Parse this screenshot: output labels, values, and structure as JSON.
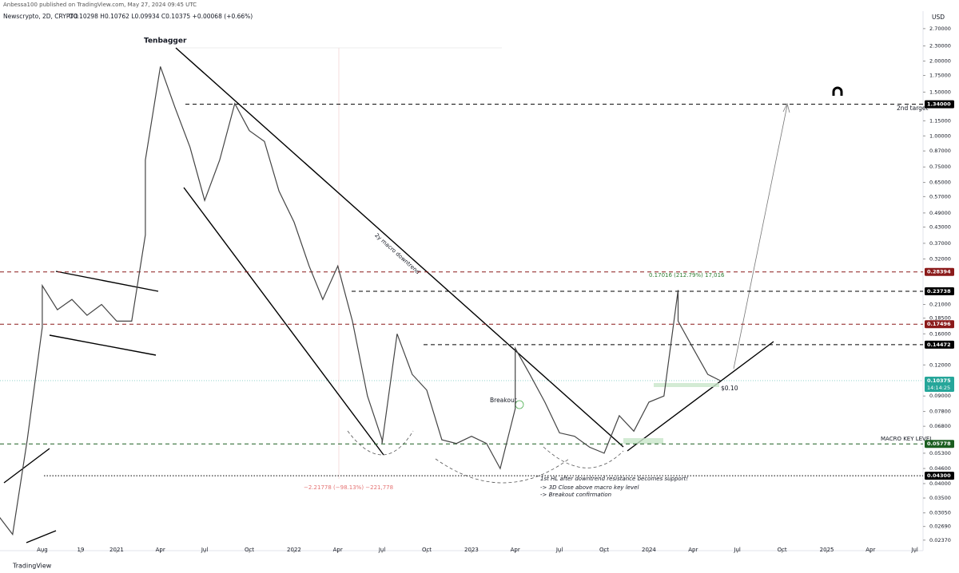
{
  "header": {
    "published": "Anbessa100 published on TradingView.com, May 27, 2024 09:45 UTC",
    "symbol": "Newscrypto, 2D, CRYPTO",
    "ohlc": "O0.10298 H0.10762 L0.09934 C0.10375 +0.00068 (+0.66%)"
  },
  "footer": {
    "brand": "TradingView"
  },
  "chart_data": {
    "type": "line",
    "log_scale": true,
    "currency": "USD",
    "x": [
      "2020-05",
      "2020-06",
      "2020-07",
      "2020-08",
      "2020-08",
      "2020-09",
      "2020-10",
      "2020-11",
      "2020-12",
      "2021-01",
      "2021-02",
      "2021-03",
      "2021-03",
      "2021-04",
      "2021-05",
      "2021-06",
      "2021-07",
      "2021-08",
      "2021-09",
      "2021-10",
      "2021-11",
      "2021-12",
      "2022-01",
      "2022-02",
      "2022-03",
      "2022-04",
      "2022-05",
      "2022-06",
      "2022-07",
      "2022-07",
      "2022-08",
      "2022-09",
      "2022-10",
      "2022-11",
      "2022-12",
      "2023-01",
      "2023-02",
      "2023-03",
      "2023-04",
      "2023-04",
      "2023-05",
      "2023-06",
      "2023-07",
      "2023-08",
      "2023-09",
      "2023-10",
      "2023-11",
      "2023-12",
      "2024-01",
      "2024-02",
      "2024-03",
      "2024-03",
      "2024-04",
      "2024-05",
      "2024-05-27"
    ],
    "series": [
      {
        "name": "Newscrypto",
        "color": "#444444",
        "values": [
          0.03,
          0.025,
          0.06,
          0.17,
          0.25,
          0.2,
          0.22,
          0.19,
          0.21,
          0.18,
          0.18,
          0.4,
          0.8,
          1.9,
          1.3,
          0.9,
          0.55,
          0.8,
          1.35,
          1.05,
          0.95,
          0.6,
          0.45,
          0.3,
          0.22,
          0.3,
          0.18,
          0.09,
          0.06,
          0.058,
          0.16,
          0.11,
          0.095,
          0.06,
          0.058,
          0.062,
          0.058,
          0.046,
          0.08,
          0.14,
          0.11,
          0.085,
          0.064,
          0.062,
          0.056,
          0.053,
          0.075,
          0.065,
          0.085,
          0.09,
          0.24,
          0.18,
          0.14,
          0.11,
          0.10375
        ]
      }
    ],
    "xlim": [
      "2020-05-06",
      "2025-07-18"
    ],
    "xticks": [
      {
        "value": "2020-08",
        "label": "Aug"
      },
      {
        "value": "2020-10-19",
        "label": "19"
      },
      {
        "value": "2021-01",
        "label": "2021"
      },
      {
        "value": "2021-04",
        "label": "Apr"
      },
      {
        "value": "2021-07",
        "label": "Jul"
      },
      {
        "value": "2021-10",
        "label": "Oct"
      },
      {
        "value": "2022-01",
        "label": "2022"
      },
      {
        "value": "2022-04",
        "label": "Apr"
      },
      {
        "value": "2022-07",
        "label": "Jul"
      },
      {
        "value": "2022-10",
        "label": "Oct"
      },
      {
        "value": "2023-01",
        "label": "2023"
      },
      {
        "value": "2023-04",
        "label": "Apr"
      },
      {
        "value": "2023-07",
        "label": "Jul"
      },
      {
        "value": "2023-10",
        "label": "Oct"
      },
      {
        "value": "2024-01",
        "label": "2024"
      },
      {
        "value": "2024-04",
        "label": "Apr"
      },
      {
        "value": "2024-07",
        "label": "Jul"
      },
      {
        "value": "2024-10",
        "label": "Oct"
      },
      {
        "value": "2025-01",
        "label": "2025"
      },
      {
        "value": "2025-04",
        "label": "Apr"
      },
      {
        "value": "2025-07",
        "label": "Jul"
      }
    ],
    "ylim": [
      0.0215,
      3.15
    ],
    "yticks": [
      {
        "value": 2.7,
        "label": "2.70000"
      },
      {
        "value": 2.3,
        "label": "2.30000"
      },
      {
        "value": 2,
        "label": "2.00000"
      },
      {
        "value": 1.75,
        "label": "1.75000"
      },
      {
        "value": 1.5,
        "label": "1.50000"
      },
      {
        "value": 1.15,
        "label": "1.15000"
      },
      {
        "value": 1,
        "label": "1.00000"
      },
      {
        "value": 0.87,
        "label": "0.87000"
      },
      {
        "value": 0.75,
        "label": "0.75000"
      },
      {
        "value": 0.65,
        "label": "0.65000"
      },
      {
        "value": 0.57,
        "label": "0.57000"
      },
      {
        "value": 0.49,
        "label": "0.49000"
      },
      {
        "value": 0.43,
        "label": "0.43000"
      },
      {
        "value": 0.37,
        "label": "0.37000"
      },
      {
        "value": 0.32,
        "label": "0.32000"
      },
      {
        "value": 0.21,
        "label": "0.21000"
      },
      {
        "value": 0.185,
        "label": "0.18500"
      },
      {
        "value": 0.16,
        "label": "0.16000"
      },
      {
        "value": 0.12,
        "label": "0.12000"
      },
      {
        "value": 0.09,
        "label": "0.09000"
      },
      {
        "value": 0.078,
        "label": "0.07800"
      },
      {
        "value": 0.068,
        "label": "0.06800"
      },
      {
        "value": 0.053,
        "label": "0.05300"
      },
      {
        "value": 0.046,
        "label": "0.04600"
      },
      {
        "value": 0.04,
        "label": "0.04000"
      },
      {
        "value": 0.035,
        "label": "0.03500"
      },
      {
        "value": 0.0305,
        "label": "0.03050"
      },
      {
        "value": 0.0269,
        "label": "0.02690"
      },
      {
        "value": 0.0237,
        "label": "0.02370"
      }
    ],
    "levels": [
      {
        "value": 1.34,
        "label": "1.34000",
        "color": "#000000"
      },
      {
        "value": 0.28394,
        "label": "0.28394",
        "color": "#8b1a1a"
      },
      {
        "value": 0.23738,
        "label": "0.23738",
        "color": "#000000"
      },
      {
        "value": 0.17496,
        "label": "0.17496",
        "color": "#8b1a1a"
      },
      {
        "value": 0.14472,
        "label": "0.14472",
        "color": "#000000"
      },
      {
        "value": 0.05778,
        "label": "0.05778",
        "color": "#1b5e20"
      },
      {
        "value": 0.043,
        "label": "0.04300",
        "color": "#000000"
      }
    ],
    "last_price": {
      "value": 0.10375,
      "label": "0.10375",
      "countdown": "14:14:25",
      "color": "#26a69a"
    },
    "annotations": {
      "tenbagger": "Tenbagger",
      "downtrend": "2y macro downtrend",
      "target": "2nd target",
      "breakout": "Breakout",
      "measure_up": "0.17016 (212.79%) 17,016",
      "price_tag": "$0.10",
      "measure_down": "−2.21778 (−98.13%) −221,778",
      "macro": "MACRO KEY LEVEL",
      "note1": "1st HL after downtrend resistance becomes support!",
      "note2": "-> 3D Close above macro key level",
      "note3": "-> Breakout confirmation"
    }
  }
}
